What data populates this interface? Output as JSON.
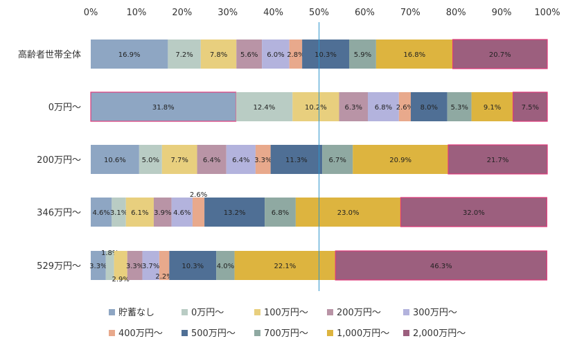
{
  "chart_data": {
    "type": "bar",
    "orientation": "horizontal",
    "stacked": "percent",
    "xlim": [
      0,
      100
    ],
    "x_ticks": [
      "0%",
      "10%",
      "20%",
      "30%",
      "40%",
      "50%",
      "60%",
      "70%",
      "80%",
      "90%",
      "100%"
    ],
    "x_tick_values": [
      0,
      10,
      20,
      30,
      40,
      50,
      60,
      70,
      80,
      90,
      100
    ],
    "reference_line": 50,
    "grid": false,
    "legend_position": "bottom",
    "categories": [
      "高齢者世帯全体",
      "0万円～",
      "200万円～",
      "346万円～",
      "529万円～"
    ],
    "series": [
      {
        "name": "貯蓄なし",
        "color": "#8EA6C3",
        "values": [
          16.9,
          31.8,
          10.6,
          4.6,
          3.3
        ],
        "labels": [
          "16.9%",
          "31.8%",
          "10.6%",
          "4.6%",
          "3.3%"
        ]
      },
      {
        "name": "0万円～",
        "color": "#B9CCC4",
        "values": [
          7.2,
          12.4,
          5.0,
          3.1,
          1.8
        ],
        "labels": [
          "7.2%",
          "12.4%",
          "5.0%",
          "3.1%",
          "1.8%"
        ]
      },
      {
        "name": "100万円～",
        "color": "#E8CF7E",
        "values": [
          7.8,
          10.2,
          7.7,
          6.1,
          2.9
        ],
        "labels": [
          "7.8%",
          "10.2%",
          "7.7%",
          "6.1%",
          "2.9%"
        ]
      },
      {
        "name": "200万円～",
        "color": "#B994A6",
        "values": [
          5.6,
          6.3,
          6.4,
          3.9,
          3.3
        ],
        "labels": [
          "5.6%",
          "6.3%",
          "6.4%",
          "3.9%",
          "3.3%"
        ]
      },
      {
        "name": "300万円～",
        "color": "#B3B3DD",
        "values": [
          6.0,
          6.8,
          6.4,
          4.6,
          3.7
        ],
        "labels": [
          "6.0%",
          "6.8%",
          "6.4%",
          "4.6%",
          "3.7%"
        ]
      },
      {
        "name": "400万円～",
        "color": "#E8A98C",
        "values": [
          2.8,
          2.6,
          3.3,
          2.6,
          2.2
        ],
        "labels": [
          "2.8%",
          "2.6%",
          "3.3%",
          "2.6%",
          "2.2%"
        ]
      },
      {
        "name": "500万円～",
        "color": "#4F6F95",
        "values": [
          10.3,
          8.0,
          11.3,
          13.2,
          10.3
        ],
        "labels": [
          "10.3%",
          "8.0%",
          "11.3%",
          "13.2%",
          "10.3%"
        ]
      },
      {
        "name": "700万円～",
        "color": "#8FA9A2",
        "values": [
          5.9,
          5.3,
          6.7,
          6.8,
          4.0
        ],
        "labels": [
          "5.9%",
          "5.3%",
          "6.7%",
          "6.8%",
          "4.0%"
        ]
      },
      {
        "name": "1,000万円～",
        "color": "#DDB43F",
        "values": [
          16.8,
          9.1,
          20.9,
          23.0,
          22.1
        ],
        "labels": [
          "16.8%",
          "9.1%",
          "20.9%",
          "23.0%",
          "22.1%"
        ]
      },
      {
        "name": "2,000万円～",
        "color": "#9C5F7E",
        "values": [
          20.7,
          7.5,
          21.7,
          32.0,
          46.3
        ],
        "labels": [
          "20.7%",
          "7.5%",
          "21.7%",
          "32.0%",
          "46.3%"
        ]
      }
    ]
  }
}
